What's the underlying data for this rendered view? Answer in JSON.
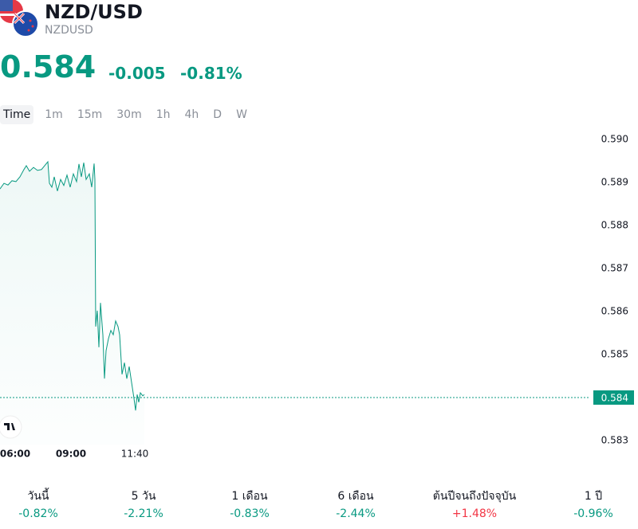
{
  "header": {
    "symbol": "NZD/USD",
    "ticker": "NZDUSD",
    "price": "0.584",
    "change": "-0.005",
    "change_percent": "-0.81%"
  },
  "tabs": [
    "Time",
    "1m",
    "15m",
    "30m",
    "1h",
    "4h",
    "D",
    "W"
  ],
  "chart_data": {
    "type": "line",
    "color": "#089981",
    "x": [
      0,
      5,
      10,
      15,
      20,
      25,
      30,
      33,
      37,
      42,
      47,
      52,
      56,
      60,
      62,
      65,
      68,
      72,
      76,
      80,
      84,
      88,
      92,
      96,
      99,
      102,
      105,
      108,
      112,
      115,
      118,
      119,
      120,
      122,
      124,
      126,
      129,
      131,
      133,
      136,
      139,
      142,
      145,
      148,
      150,
      153,
      156,
      159,
      162,
      165,
      168,
      170,
      172,
      174,
      176,
      179,
      181
    ],
    "values": [
      0.58885,
      0.58898,
      0.58894,
      0.58904,
      0.58902,
      0.58913,
      0.5893,
      0.58939,
      0.58926,
      0.58935,
      0.58928,
      0.5893,
      0.58939,
      0.58948,
      0.58898,
      0.58889,
      0.58913,
      0.5888,
      0.58907,
      0.58893,
      0.58917,
      0.58889,
      0.5892,
      0.58902,
      0.58943,
      0.58913,
      0.58946,
      0.58907,
      0.5892,
      0.58889,
      0.58944,
      0.58907,
      0.58565,
      0.58602,
      0.58517,
      0.5862,
      0.58546,
      0.58444,
      0.58509,
      0.58537,
      0.58556,
      0.58546,
      0.58578,
      0.58565,
      0.58546,
      0.58454,
      0.58481,
      0.58444,
      0.58472,
      0.58435,
      0.58398,
      0.5837,
      0.58407,
      0.58389,
      0.58411,
      0.58404,
      0.58407
    ],
    "xlim": [
      0,
      740
    ],
    "xticks": [
      {
        "value": 19,
        "label": "06:00"
      },
      {
        "value": 89,
        "label": "09:00"
      },
      {
        "value": 169,
        "label": "11:40"
      }
    ],
    "ylim": [
      0.5829,
      0.5903
    ],
    "yticks": [
      {
        "value": 0.59,
        "label": "0.590"
      },
      0.589,
      0.588,
      0.587,
      0.586,
      0.585,
      0.583
    ],
    "last_value": 0.584
  },
  "performance": [
    {
      "label": "วันนี้",
      "value": "-0.82%",
      "color": "#089981"
    },
    {
      "label": "5 วัน",
      "value": "-2.21%",
      "color": "#089981"
    },
    {
      "label": "1 เดือน",
      "value": "-0.83%",
      "color": "#089981"
    },
    {
      "label": "6 เดือน",
      "value": "-2.44%",
      "color": "#089981"
    },
    {
      "label": "ต้นปีจนถึงปัจจุบัน",
      "value": "+1.48%",
      "color": "#f23645"
    },
    {
      "label": "1 ปี",
      "value": "-0.96%",
      "color": "#089981"
    }
  ]
}
